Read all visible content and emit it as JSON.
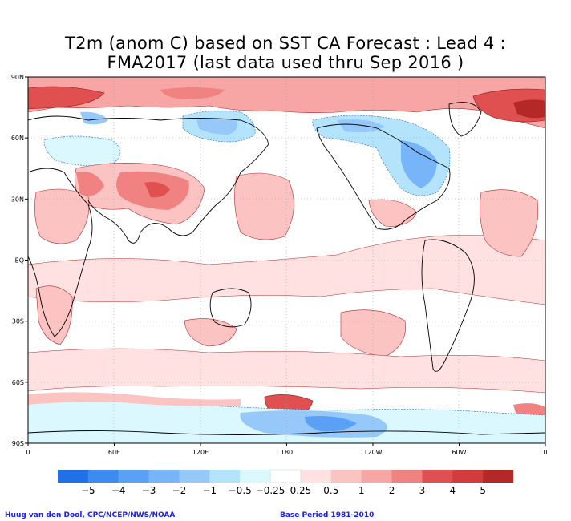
{
  "title": {
    "line1": "T2m (anom C) based on SST CA Forecast : Lead 4 :",
    "line2": "FMA2017 (last data used thru Sep 2016 )"
  },
  "map": {
    "lat_labels": [
      "90N",
      "60N",
      "30N",
      "EQ",
      "30S",
      "60S",
      "90S"
    ],
    "lon_labels": [
      "0",
      "60E",
      "120E",
      "180",
      "120W",
      "60W",
      "0"
    ],
    "land_color": "#ffffff",
    "gridlines": "dotted"
  },
  "colorbar": {
    "labels": [
      "−5",
      "−4",
      "−3",
      "−2",
      "−1",
      "−0.5",
      "−0.25",
      "0.25",
      "0.5",
      "1",
      "2",
      "3",
      "4",
      "5"
    ],
    "colors": [
      "#2070e8",
      "#3c8cf0",
      "#5aa0f5",
      "#78b4f8",
      "#96c8fa",
      "#b4e4fc",
      "#dcf8ff",
      "#ffffff",
      "#ffe1e1",
      "#fcc3c3",
      "#f8a5a5",
      "#f08282",
      "#e05050",
      "#d23c3c",
      "#b42828"
    ]
  },
  "credits": {
    "left": "Huug van den Dool, CPC/NCEP/NWS/NOAA",
    "right": "Base Period 1981-2010"
  }
}
